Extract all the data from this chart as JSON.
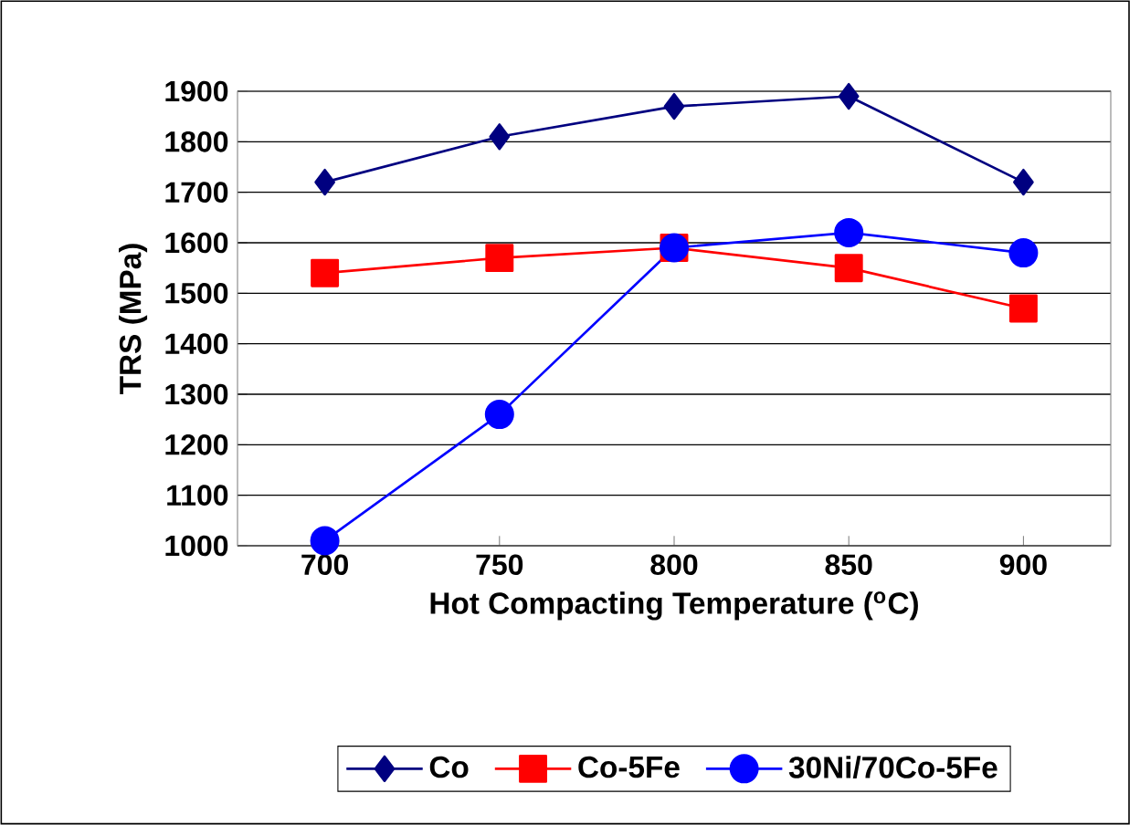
{
  "chart_data": {
    "type": "line",
    "xlabel": "Hot Compacting Temperature ($^{o}$C)",
    "ylabel": "TRS (MPa)",
    "categories": [
      "700",
      "750",
      "800",
      "850",
      "900"
    ],
    "series": [
      {
        "name": "Co",
        "color": "#000080",
        "marker": "diamond",
        "values": [
          1720,
          1810,
          1870,
          1890,
          1720
        ]
      },
      {
        "name": "Co-5Fe",
        "color": "#ff0000",
        "marker": "square",
        "values": [
          1540,
          1570,
          1590,
          1550,
          1470
        ]
      },
      {
        "name": "30Ni/70Co-5Fe",
        "color": "#0000ff",
        "marker": "circle",
        "values": [
          1010,
          1260,
          1590,
          1620,
          1580
        ]
      }
    ],
    "ylim": [
      1000,
      1900
    ],
    "yticks": [
      1000,
      1100,
      1200,
      1300,
      1400,
      1500,
      1600,
      1700,
      1800,
      1900
    ],
    "grid": "y",
    "legend": "bottom",
    "line_style": "solid"
  }
}
